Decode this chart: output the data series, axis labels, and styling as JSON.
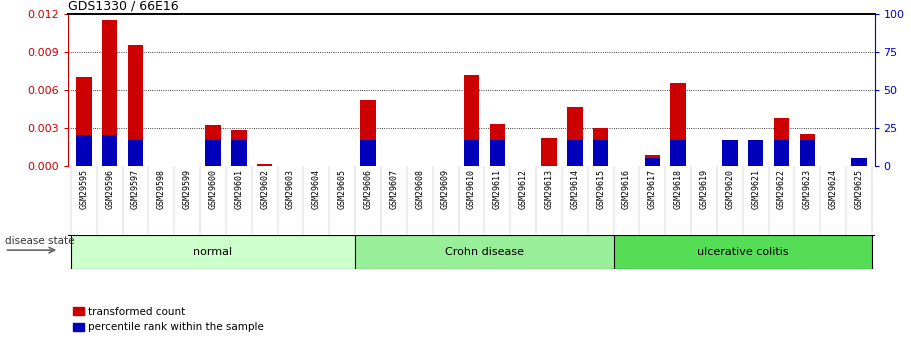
{
  "title": "GDS1330 / 66E16",
  "samples": [
    "GSM29595",
    "GSM29596",
    "GSM29597",
    "GSM29598",
    "GSM29599",
    "GSM29600",
    "GSM29601",
    "GSM29602",
    "GSM29603",
    "GSM29604",
    "GSM29605",
    "GSM29606",
    "GSM29607",
    "GSM29608",
    "GSM29609",
    "GSM29610",
    "GSM29611",
    "GSM29612",
    "GSM29613",
    "GSM29614",
    "GSM29615",
    "GSM29616",
    "GSM29617",
    "GSM29618",
    "GSM29619",
    "GSM29620",
    "GSM29621",
    "GSM29622",
    "GSM29623",
    "GSM29624",
    "GSM29625"
  ],
  "transformed_count": [
    0.007,
    0.0115,
    0.0095,
    0.0,
    0.0,
    0.0032,
    0.0028,
    0.00012,
    0.0,
    0.0,
    0.0,
    0.0052,
    0.0,
    0.0,
    0.0,
    0.0072,
    0.0033,
    0.0,
    0.0022,
    0.0046,
    0.003,
    0.0,
    0.00085,
    0.0065,
    0.0,
    0.00125,
    0.00115,
    0.0038,
    0.0025,
    0.0,
    0.00025
  ],
  "percentile_rank": [
    20,
    20,
    17,
    0,
    0,
    17,
    17,
    0,
    0,
    0,
    0,
    17,
    0,
    0,
    0,
    17,
    17,
    0,
    0,
    17,
    17,
    0,
    5,
    17,
    0,
    17,
    17,
    17,
    17,
    0,
    5
  ],
  "groups": [
    {
      "label": "normal",
      "start": 0,
      "end": 10,
      "color": "#ccffcc"
    },
    {
      "label": "Crohn disease",
      "start": 11,
      "end": 20,
      "color": "#99ee99"
    },
    {
      "label": "ulcerative colitis",
      "start": 21,
      "end": 30,
      "color": "#55dd55"
    }
  ],
  "ylim_left": [
    0,
    0.012
  ],
  "ylim_right": [
    0,
    100
  ],
  "yticks_left": [
    0,
    0.003,
    0.006,
    0.009,
    0.012
  ],
  "yticks_right": [
    0,
    25,
    50,
    75,
    100
  ],
  "bar_color_red": "#cc0000",
  "bar_color_blue": "#0000bb",
  "bg_color": "#ffffff",
  "plot_bg": "#ffffff",
  "xtick_bg": "#cccccc",
  "grid_color": "#000000",
  "title_color": "#000000",
  "left_axis_color": "#cc0000",
  "right_axis_color": "#0000cc",
  "disease_state_label": "disease state",
  "legend_items": [
    "transformed count",
    "percentile rank within the sample"
  ],
  "bar_width": 0.6
}
